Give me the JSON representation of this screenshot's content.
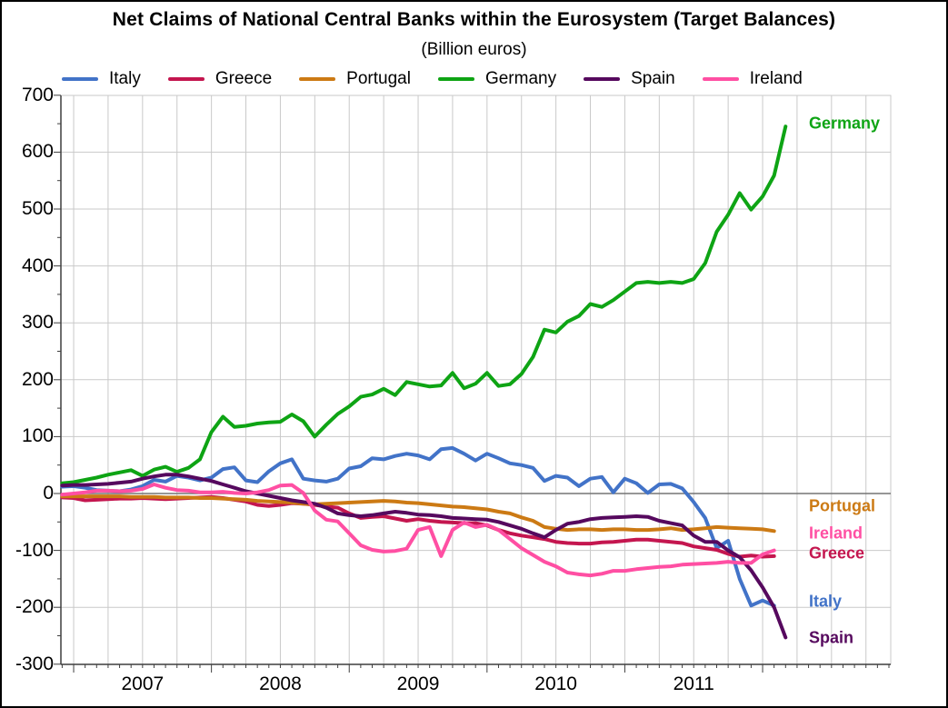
{
  "figure": {
    "title": "Net Claims of National Central Banks within the Eurosystem (Target Balances)",
    "subtitle": "(Billion euros)"
  },
  "chart_data": {
    "type": "line",
    "title": "Net Claims of National Central Banks within the Eurosystem (Target Balances)",
    "subtitle": "(Billion euros)",
    "ylabel": "",
    "xlabel": "",
    "unit": "billion euros",
    "ylim": [
      -300,
      700
    ],
    "y_ticks": [
      700,
      600,
      500,
      400,
      300,
      200,
      100,
      0,
      -100,
      -200,
      -300
    ],
    "x_tick_labels": [
      "2007",
      "2008",
      "2009",
      "2010",
      "2011"
    ],
    "x_frequency": "monthly",
    "x_start": "2006-12",
    "x_end": "2012-03",
    "grid": "on",
    "gridline_interval": {
      "horizontal_units": 100,
      "vertical_months": 3
    },
    "legend_position": "top",
    "colors": {
      "grid": "#C9C9C9",
      "zero_line": "#757575",
      "axis": "#3F3F3F",
      "background": "#FFFFFF",
      "border": "#000000",
      "text": "#000000"
    },
    "series": [
      {
        "name": "Italy",
        "color": "#4273C8",
        "end_label": {
          "x": 888,
          "y": 660
        },
        "values": [
          12,
          13,
          10,
          6,
          5,
          4,
          7,
          13,
          24,
          21,
          31,
          28,
          23,
          28,
          43,
          46,
          23,
          20,
          39,
          53,
          60,
          26,
          23,
          21,
          26,
          44,
          48,
          62,
          60,
          66,
          70,
          67,
          60,
          78,
          80,
          70,
          58,
          70,
          62,
          53,
          50,
          45,
          22,
          31,
          28,
          13,
          26,
          29,
          2,
          26,
          18,
          1,
          16,
          17,
          9,
          -15,
          -43,
          -96,
          -83,
          -150,
          -197,
          -188,
          -197,
          null
        ]
      },
      {
        "name": "Greece",
        "color": "#C4164F",
        "end_label": {
          "x": 888,
          "y": 607
        },
        "values": [
          -7,
          -8,
          -12,
          -11,
          -10,
          -9,
          -9,
          -8,
          -9,
          -10,
          -9,
          -8,
          -7,
          -6,
          -8,
          -11,
          -14,
          -20,
          -22,
          -20,
          -17,
          -18,
          -20,
          -23,
          -25,
          -35,
          -43,
          -41,
          -40,
          -44,
          -48,
          -45,
          -48,
          -50,
          -51,
          -52,
          -52,
          -56,
          -64,
          -70,
          -74,
          -77,
          -80,
          -85,
          -87,
          -88,
          -88,
          -86,
          -85,
          -83,
          -81,
          -81,
          -83,
          -85,
          -87,
          -93,
          -96,
          -99,
          -106,
          -111,
          -109,
          -111,
          -110,
          null
        ]
      },
      {
        "name": "Portugal",
        "color": "#CC7A14",
        "end_label": {
          "x": 888,
          "y": 555
        },
        "values": [
          -5,
          -5,
          -5,
          -5,
          -5,
          -5,
          -6,
          -6,
          -6,
          -7,
          -7,
          -7,
          -8,
          -8,
          -9,
          -10,
          -11,
          -13,
          -14,
          -15,
          -16,
          -18,
          -19,
          -18,
          -17,
          -16,
          -15,
          -14,
          -13,
          -14,
          -16,
          -17,
          -19,
          -21,
          -23,
          -24,
          -26,
          -28,
          -32,
          -35,
          -42,
          -48,
          -59,
          -62,
          -64,
          -63,
          -63,
          -64,
          -63,
          -63,
          -64,
          -64,
          -63,
          -61,
          -64,
          -63,
          -61,
          -59,
          -60,
          -61,
          -62,
          -63,
          -66,
          null
        ]
      },
      {
        "name": "Germany",
        "color": "#0EA414",
        "end_label": {
          "x": 888,
          "y": 134
        },
        "values": [
          18,
          20,
          24,
          28,
          33,
          37,
          41,
          31,
          42,
          47,
          38,
          45,
          60,
          108,
          135,
          117,
          119,
          123,
          125,
          126,
          139,
          127,
          100,
          121,
          140,
          153,
          170,
          174,
          184,
          173,
          196,
          192,
          188,
          190,
          212,
          185,
          193,
          212,
          189,
          192,
          210,
          240,
          288,
          283,
          302,
          312,
          333,
          328,
          340,
          355,
          370,
          372,
          370,
          372,
          370,
          377,
          405,
          460,
          490,
          528,
          499,
          522,
          559,
          645
        ]
      },
      {
        "name": "Spain",
        "color": "#56095E",
        "end_label": {
          "x": 888,
          "y": 700
        },
        "values": [
          14,
          15,
          15,
          16,
          17,
          19,
          21,
          26,
          30,
          33,
          33,
          30,
          26,
          22,
          16,
          10,
          4,
          0,
          -4,
          -8,
          -12,
          -15,
          -18,
          -25,
          -35,
          -38,
          -40,
          -38,
          -35,
          -32,
          -34,
          -37,
          -38,
          -40,
          -43,
          -44,
          -45,
          -46,
          -50,
          -56,
          -62,
          -70,
          -77,
          -64,
          -53,
          -50,
          -45,
          -43,
          -42,
          -41,
          -40,
          -41,
          -48,
          -52,
          -56,
          -74,
          -85,
          -85,
          -100,
          -112,
          -135,
          -165,
          -200,
          -253
        ]
      },
      {
        "name": "Ireland",
        "color": "#FF4FA3",
        "end_label": {
          "x": 888,
          "y": 585
        },
        "values": [
          -2,
          0,
          2,
          5,
          5,
          4,
          5,
          8,
          16,
          10,
          6,
          5,
          2,
          2,
          3,
          1,
          0,
          2,
          6,
          14,
          15,
          1,
          -30,
          -46,
          -49,
          -70,
          -91,
          -99,
          -102,
          -101,
          -97,
          -64,
          -59,
          -110,
          -64,
          -51,
          -59,
          -55,
          -64,
          -80,
          -96,
          -108,
          -120,
          -128,
          -139,
          -142,
          -144,
          -141,
          -136,
          -136,
          -133,
          -131,
          -129,
          -128,
          -125,
          -124,
          -123,
          -122,
          -120,
          -122,
          -122,
          -107,
          -100,
          null
        ]
      }
    ]
  }
}
